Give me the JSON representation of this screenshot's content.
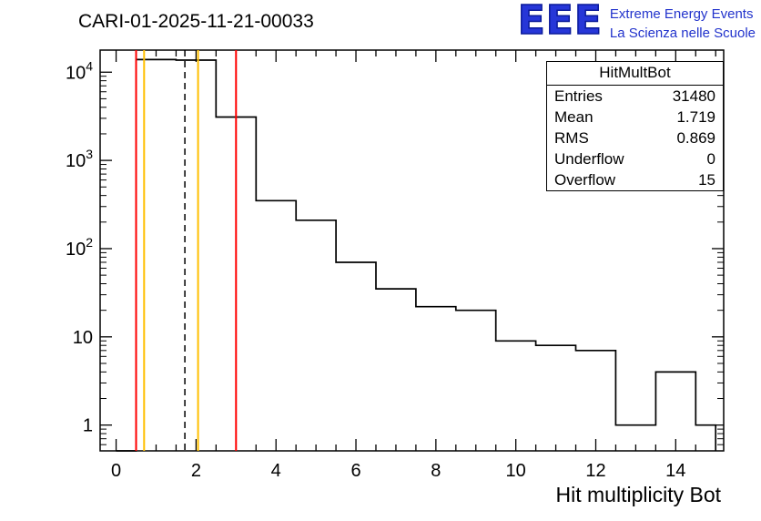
{
  "header": {
    "title": "CARI-01-2025-11-21-00033"
  },
  "logo": {
    "letters": "EEE",
    "line1": "Extreme Energy Events",
    "line2": "La Scienza nelle Scuole",
    "color": "#2233cc"
  },
  "stats": {
    "title": "HitMultBot",
    "rows": [
      {
        "label": "Entries",
        "value": "31480"
      },
      {
        "label": "Mean",
        "value": "1.719"
      },
      {
        "label": "RMS",
        "value": "0.869"
      },
      {
        "label": "Underflow",
        "value": "0"
      },
      {
        "label": "Overflow",
        "value": "15"
      }
    ]
  },
  "chart_data": {
    "type": "bar",
    "subtype": "step-histogram",
    "title": "CARI-01-2025-11-21-00033",
    "x_title": "Hit multiplicity Bot",
    "y_scale": "log",
    "x_range": [
      -0.4,
      15.2
    ],
    "y_range": [
      0.51,
      17800
    ],
    "bin_edges": [
      0.5,
      1.5,
      2.5,
      3.5,
      4.5,
      5.5,
      6.5,
      7.5,
      8.5,
      9.5,
      10.5,
      11.5,
      12.5,
      13.5,
      14.5,
      15.0
    ],
    "bin_values": [
      13900,
      13700,
      3100,
      350,
      210,
      70,
      35,
      22,
      20,
      9,
      8,
      7,
      1,
      4,
      1
    ],
    "x_major_ticks": [
      0,
      2,
      4,
      6,
      8,
      10,
      12,
      14
    ],
    "x_minor_step": 0.5,
    "y_major_ticks": [
      1,
      10,
      100,
      1000,
      10000
    ],
    "y_tick_labels": [
      "1",
      "10",
      "10^2",
      "10^3",
      "10^4"
    ],
    "histogram_color": "#000000",
    "grid": false,
    "legend": false,
    "vertical_lines": [
      {
        "name": "red-low",
        "x": 0.5,
        "color": "#ff0000",
        "style": "solid"
      },
      {
        "name": "orange-low",
        "x": 0.7,
        "color": "#ffbf00",
        "style": "solid"
      },
      {
        "name": "mean-dashed",
        "x": 1.72,
        "color": "#000000",
        "style": "dashed"
      },
      {
        "name": "orange-high",
        "x": 2.05,
        "color": "#ffbf00",
        "style": "solid"
      },
      {
        "name": "red-high",
        "x": 3.0,
        "color": "#ff0000",
        "style": "solid"
      }
    ]
  }
}
